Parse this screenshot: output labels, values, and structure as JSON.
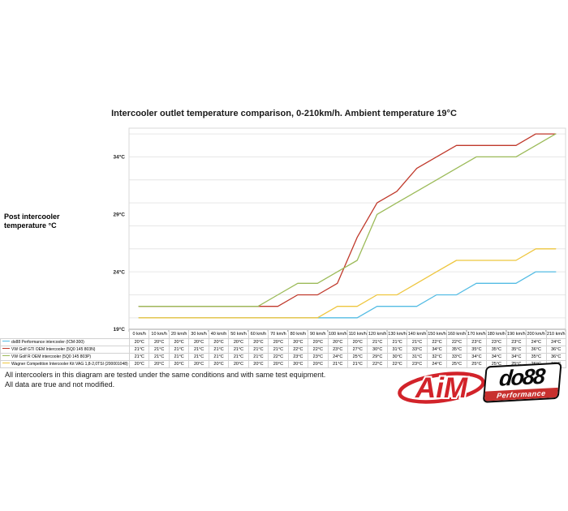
{
  "title": "Intercooler outlet temperature comparison, 0-210km/h. Ambient temperature 19°C",
  "y_axis": {
    "title_line1": "Post intercooler",
    "title_line2": "temperature °C"
  },
  "chart_data": {
    "type": "line",
    "title": "Intercooler outlet temperature comparison, 0-210km/h. Ambient temperature 19°C",
    "ylabel": "Post intercooler temperature °C",
    "xlabel": "km/h",
    "grid": true,
    "legend_position": "left-of-table",
    "ylim": [
      19,
      36.5
    ],
    "y_tick_values": [
      34,
      29,
      24,
      19
    ],
    "y_tick_labels": [
      "34°C",
      "29°C",
      "24°C",
      "19°C"
    ],
    "gridline_values": [
      20,
      22,
      24,
      26,
      28,
      30,
      32,
      34,
      36
    ],
    "value_suffix": "°C",
    "categories": [
      "0 km/h",
      "10 km/h",
      "20 km/h",
      "30 km/h",
      "40 km/h",
      "50 km/h",
      "60 km/h",
      "70 km/h",
      "80 km/h",
      "90 km/h",
      "100 km/h",
      "110 km/h",
      "120 km/h",
      "130 km/h",
      "140 km/h",
      "150 km/h",
      "160 km/h",
      "170 km/h",
      "180 km/h",
      "190 km/h",
      "200 km/h",
      "210 km/h"
    ],
    "series": [
      {
        "name": "do88 Performance intercooler (ICM-300)",
        "color": "#54BCE4",
        "values": [
          20,
          20,
          20,
          20,
          20,
          20,
          20,
          20,
          20,
          20,
          20,
          20,
          21,
          21,
          21,
          22,
          22,
          23,
          23,
          23,
          24,
          24
        ]
      },
      {
        "name": "VW Golf GTI OEM Intercooler (5Q0 145 803N)",
        "color": "#C0392B",
        "values": [
          21,
          21,
          21,
          21,
          21,
          21,
          21,
          21,
          22,
          22,
          23,
          27,
          30,
          31,
          33,
          34,
          35,
          35,
          35,
          35,
          36,
          36
        ]
      },
      {
        "name": "VW Golf R OEM intercooler (5Q0 145 803P)",
        "color": "#9CBB59",
        "values": [
          21,
          21,
          21,
          21,
          21,
          21,
          21,
          22,
          23,
          23,
          24,
          25,
          29,
          30,
          31,
          32,
          33,
          34,
          34,
          34,
          35,
          36
        ]
      },
      {
        "name": "Wagner Competition Intercooler Kit VAG 1,8-2,0TSI (200001048)",
        "color": "#EEC63F",
        "values": [
          20,
          20,
          20,
          20,
          20,
          20,
          20,
          20,
          20,
          20,
          21,
          21,
          22,
          22,
          23,
          24,
          25,
          25,
          25,
          25,
          26,
          26
        ]
      }
    ]
  },
  "footer": {
    "line1": "All intercoolers in this diagram are tested under the same conditions and with same test equipment.",
    "line2": "All data are true and not modified."
  },
  "logos": {
    "aim": {
      "text": "AiM",
      "color": "#D2232A"
    },
    "do88": {
      "text": "do88",
      "banner": "Performance",
      "banner_color": "#C8302E",
      "text_color": "#0A0A0A"
    }
  }
}
